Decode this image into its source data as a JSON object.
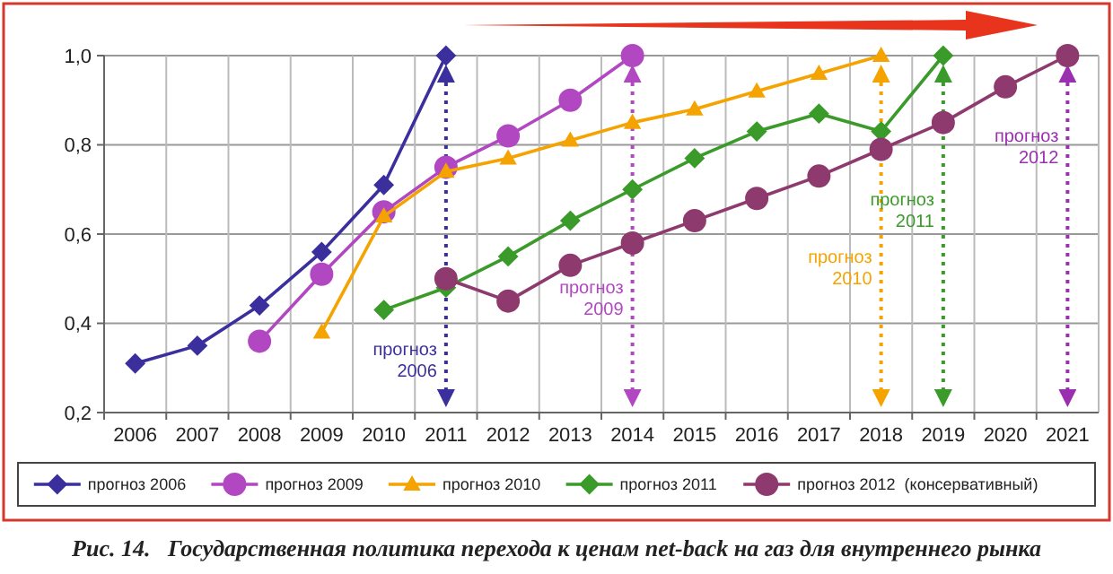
{
  "chart_data": {
    "type": "line",
    "title": "Рис. 14.   Государственная политика перехода к ценам net-back на газ для внутреннего рынка",
    "categories": [
      "2006",
      "2007",
      "2008",
      "2009",
      "2010",
      "2011",
      "2012",
      "2013",
      "2014",
      "2015",
      "2016",
      "2017",
      "2018",
      "2019",
      "2020",
      "2021"
    ],
    "ylim": [
      0.2,
      1.0
    ],
    "yticks": [
      {
        "value": 0.2,
        "label": "0,2"
      },
      {
        "value": 0.4,
        "label": "0,4"
      },
      {
        "value": 0.6,
        "label": "0,6"
      },
      {
        "value": 0.8,
        "label": "0,8"
      },
      {
        "value": 1.0,
        "label": "1,0"
      }
    ],
    "grid": true,
    "legend": "bottom",
    "series": [
      {
        "name": "прогноз 2006",
        "color": "#3b2f9e",
        "marker": "diamond",
        "values": [
          0.31,
          0.35,
          0.44,
          0.56,
          0.71,
          1.0,
          null,
          null,
          null,
          null,
          null,
          null,
          null,
          null,
          null,
          null
        ]
      },
      {
        "name": "прогноз 2009",
        "color": "#b247c2",
        "marker": "circle",
        "values": [
          null,
          null,
          0.36,
          0.51,
          0.65,
          0.75,
          0.82,
          0.9,
          1.0,
          null,
          null,
          null,
          null,
          null,
          null,
          null
        ]
      },
      {
        "name": "прогноз 2010",
        "color": "#f5a300",
        "marker": "triangle",
        "values": [
          null,
          null,
          null,
          0.38,
          0.64,
          0.74,
          0.77,
          0.81,
          0.85,
          0.88,
          0.92,
          0.96,
          1.0,
          null,
          null,
          null
        ]
      },
      {
        "name": "прогноз 2011",
        "color": "#3a9a2a",
        "marker": "diamond",
        "values": [
          null,
          null,
          null,
          null,
          0.43,
          0.48,
          0.55,
          0.63,
          0.7,
          0.77,
          0.83,
          0.87,
          0.83,
          1.0,
          null,
          null
        ]
      },
      {
        "name": "прогноз 2012  (консервативный)",
        "color": "#8e3a6e",
        "marker": "circle",
        "values": [
          null,
          null,
          null,
          null,
          null,
          0.5,
          0.45,
          0.53,
          0.58,
          0.63,
          0.68,
          0.73,
          0.79,
          0.85,
          0.93,
          1.0
        ]
      }
    ],
    "ref_lines": [
      {
        "axis": "x",
        "value": "2011",
        "label": "прогноз 2006",
        "color": "#3b2f9e",
        "line_style": "dotted"
      },
      {
        "axis": "x",
        "value": "2014",
        "label": "прогноз 2009",
        "color": "#b247c2",
        "line_style": "dotted"
      },
      {
        "axis": "x",
        "value": "2018",
        "label": "прогноз 2010",
        "color": "#f5a300",
        "line_style": "dotted"
      },
      {
        "axis": "x",
        "value": "2019",
        "label": "прогноз 2011",
        "color": "#3a9a2a",
        "line_style": "dotted"
      },
      {
        "axis": "x",
        "value": "2021",
        "label": "прогноз 2012",
        "color": "#9a2fb0",
        "line_style": "dotted"
      }
    ]
  }
}
